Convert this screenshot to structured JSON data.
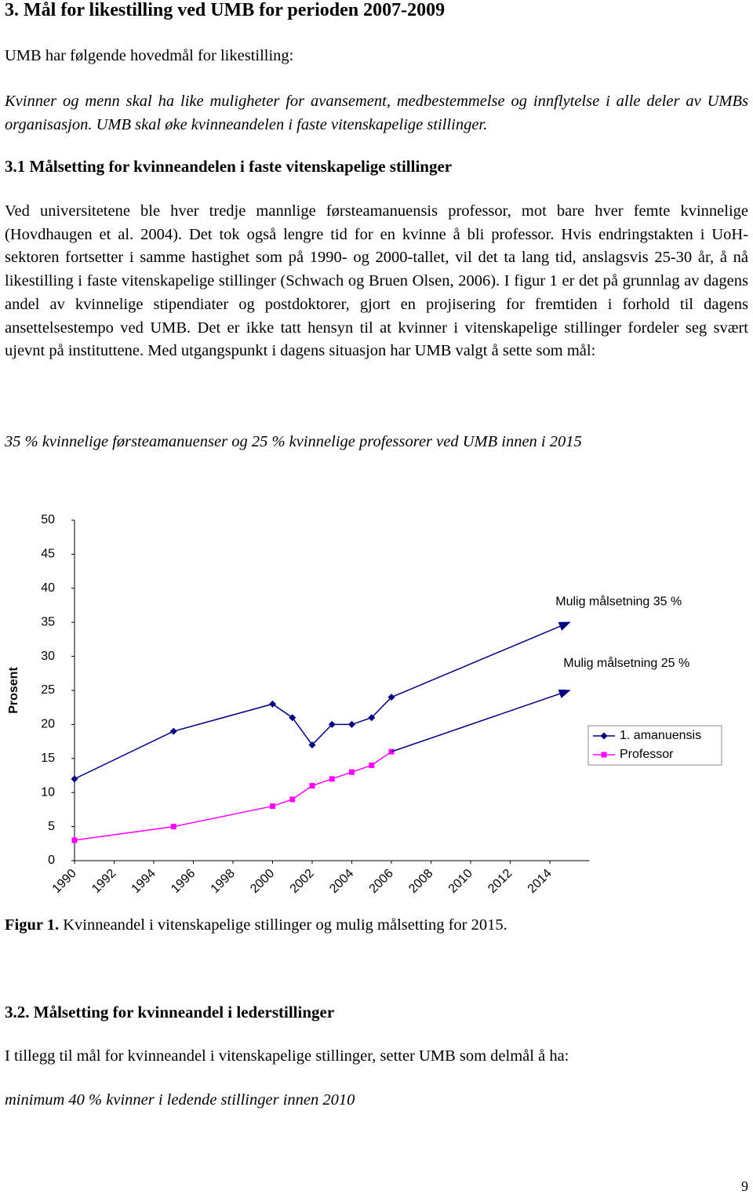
{
  "header": {
    "title": "3. Mål for likestilling ved UMB for perioden 2007-2009"
  },
  "intro": "UMB har følgende hovedmål for likestilling:",
  "goal": "Kvinner og menn skal ha like muligheter for avansement, medbestemmelse og innflytelse i alle deler av UMBs organisasjon. UMB skal øke kvinneandelen i faste vitenskapelige stillinger.",
  "section_1": {
    "title": "3.1 Målsetting for kvinneandelen i faste vitenskapelige stillinger",
    "body": "Ved universitetene ble hver tredje mannlige førsteamanuensis professor, mot bare hver femte kvinnelige (Hovdhaugen et al. 2004). Det tok også lengre tid for en kvinne å bli professor. Hvis endringstakten i UoH-sektoren fortsetter i samme hastighet som på 1990- og 2000-tallet, vil det ta lang tid, anslagsvis 25-30 år, å nå likestilling i faste vitenskapelige stillinger (Schwach og Bruen Olsen, 2006). I figur 1 er det på grunnlag av dagens andel av kvinnelige stipendiater og postdoktorer, gjort en projisering for fremtiden i forhold til dagens ansettelsestempo ved UMB. Det er ikke tatt hensyn til at kvinner i vitenskapelige stillinger fordeler seg svært ujevnt på instituttene. Med utgangspunkt i dagens situasjon har UMB valgt å sette som mål:",
    "target": "35 % kvinnelige førsteamanuenser og 25 % kvinnelige professorer ved UMB innen i 2015"
  },
  "chart_data": {
    "type": "line",
    "y_label": "Prosent",
    "x": [
      1990,
      1995,
      2000,
      2001,
      2002,
      2003,
      2004,
      2005,
      2006
    ],
    "series": [
      {
        "name": "1. amanuensis",
        "color": "#000080",
        "marker": "diamond",
        "values": [
          12,
          19,
          23,
          21,
          17,
          20,
          20,
          21,
          24
        ]
      },
      {
        "name": "Professor",
        "color": "#ff00ff",
        "marker": "square",
        "values": [
          3,
          5,
          8,
          9,
          11,
          12,
          13,
          14,
          16
        ]
      }
    ],
    "annotations": [
      {
        "text": "Mulig målsetning 35 %",
        "x": [
          2006,
          2015
        ],
        "y": [
          24,
          35
        ]
      },
      {
        "text": "Mulig målsetning 25 %",
        "x": [
          2006,
          2015
        ],
        "y": [
          16,
          25
        ]
      }
    ],
    "xlim": [
      1990,
      2016
    ],
    "xticks": [
      1990,
      1992,
      1994,
      1996,
      1998,
      2000,
      2002,
      2004,
      2006,
      2008,
      2010,
      2012,
      2014
    ],
    "ylim": [
      0,
      50
    ],
    "yticks": [
      0,
      5,
      10,
      15,
      20,
      25,
      30,
      35,
      40,
      45,
      50
    ],
    "grid": false,
    "legend": "right"
  },
  "figure_caption": {
    "label": "Figur 1.",
    "text": "Kvinneandel i vitenskapelige stillinger og mulig målsetting for 2015."
  },
  "section_2": {
    "title": "3.2. Målsetting for kvinneandel i lederstillinger",
    "body": "I tillegg til mål for kvinneandel i vitenskapelige stillinger, setter UMB som delmål å ha:",
    "target": "minimum 40 % kvinner i ledende stillinger innen 2010"
  },
  "page_number": "9"
}
